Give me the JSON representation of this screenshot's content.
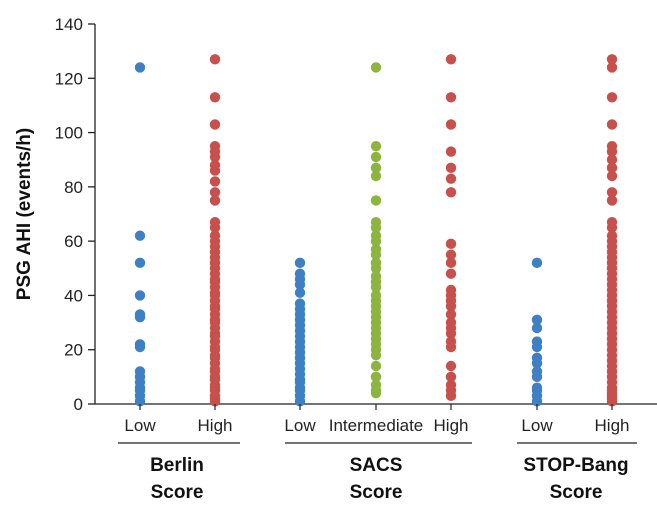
{
  "chart_data": {
    "type": "scatter",
    "ylabel": "PSG AHI (events/h)",
    "ylim": [
      0,
      140
    ],
    "yticks": [
      0,
      20,
      40,
      60,
      80,
      100,
      120,
      140
    ],
    "grid": false,
    "colors": {
      "blue": "#3f7fc3",
      "green": "#8db43f",
      "red": "#c8504c"
    },
    "groups": [
      {
        "label_line1": "Berlin",
        "label_line2": "Score",
        "categories": [
          {
            "label": "Low",
            "color": "blue",
            "values": [
              124,
              62,
              52,
              40,
              33,
              32,
              22,
              21,
              12,
              10,
              8,
              6,
              5,
              3,
              1
            ]
          },
          {
            "label": "High",
            "color": "red",
            "values": [
              127,
              113,
              103,
              95,
              93,
              91,
              88,
              86,
              82,
              78,
              75,
              67,
              65,
              62,
              60,
              58,
              56,
              54,
              52,
              50,
              48,
              46,
              45,
              43,
              41,
              40,
              38,
              36,
              35,
              33,
              31,
              30,
              28,
              26,
              25,
              23,
              21,
              20,
              18,
              17,
              15,
              13,
              12,
              10,
              9,
              7,
              6,
              5,
              3,
              2,
              1
            ]
          }
        ]
      },
      {
        "label_line1": "SACS",
        "label_line2": "Score",
        "categories": [
          {
            "label": "Low",
            "color": "blue",
            "values": [
              52,
              48,
              46,
              44,
              41,
              37,
              35,
              33,
              31,
              29,
              27,
              25,
              23,
              21,
              19,
              17,
              15,
              13,
              11,
              9,
              8,
              6,
              5,
              3,
              1
            ]
          },
          {
            "label": "Intermediate",
            "color": "green",
            "values": [
              124,
              95,
              91,
              87,
              84,
              75,
              67,
              65,
              62,
              60,
              57,
              55,
              52,
              50,
              47,
              45,
              43,
              40,
              38,
              36,
              34,
              32,
              30,
              28,
              26,
              24,
              22,
              20,
              18,
              14,
              10,
              7,
              5,
              4
            ]
          },
          {
            "label": "High",
            "color": "red",
            "values": [
              127,
              113,
              103,
              93,
              87,
              83,
              78,
              59,
              55,
              52,
              48,
              42,
              40,
              38,
              36,
              33,
              30,
              28,
              26,
              23,
              21,
              14,
              10,
              7,
              5,
              3
            ]
          }
        ]
      },
      {
        "label_line1": "STOP-Bang",
        "label_line2": "Score",
        "categories": [
          {
            "label": "Low",
            "color": "blue",
            "values": [
              52,
              31,
              28,
              23,
              21,
              17,
              15,
              12,
              10,
              6,
              5,
              3,
              1
            ]
          },
          {
            "label": "High",
            "color": "red",
            "values": [
              127,
              124,
              113,
              103,
              95,
              93,
              90,
              87,
              84,
              78,
              75,
              67,
              65,
              62,
              60,
              58,
              56,
              54,
              52,
              50,
              48,
              46,
              44,
              42,
              40,
              38,
              36,
              34,
              32,
              30,
              28,
              26,
              24,
              22,
              20,
              18,
              16,
              14,
              12,
              10,
              8,
              6,
              5,
              4,
              3,
              2,
              1
            ]
          }
        ]
      }
    ]
  }
}
